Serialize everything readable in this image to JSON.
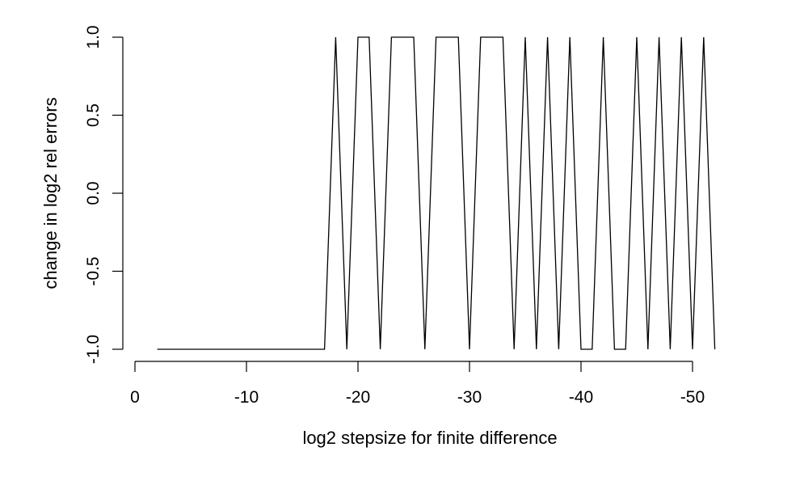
{
  "chart_data": {
    "type": "line",
    "title": "",
    "xlabel": "log2 stepsize for finite difference",
    "ylabel": "change in log2 rel errors",
    "x_axis_reversed": true,
    "xlim": [
      0,
      -51
    ],
    "ylim": [
      -1,
      1
    ],
    "x_ticks": [
      0,
      -10,
      -20,
      -30,
      -40,
      -50
    ],
    "x_tick_labels": [
      "0",
      "-10",
      "-20",
      "-30",
      "-40",
      "-50"
    ],
    "y_ticks": [
      -1.0,
      -0.5,
      0.0,
      0.5,
      1.0
    ],
    "y_tick_labels": [
      "-1.0",
      "-0.5",
      "0.0",
      "0.5",
      "1.0"
    ],
    "grid": false,
    "legend": "none",
    "line_color": "#000000",
    "series": [
      {
        "x": [
          -2,
          -3,
          -4,
          -5,
          -6,
          -7,
          -8,
          -9,
          -10,
          -11,
          -12,
          -13,
          -14,
          -15,
          -16,
          -17,
          -18,
          -19,
          -20,
          -21,
          -22,
          -23,
          -24,
          -25,
          -26,
          -27,
          -28,
          -29,
          -30,
          -31,
          -32,
          -33,
          -34,
          -35,
          -36,
          -37,
          -38,
          -39,
          -40,
          -41,
          -42,
          -43,
          -44,
          -45,
          -46,
          -47,
          -48,
          -49,
          -50,
          -51,
          -52
        ],
        "y": [
          -1,
          -1,
          -1,
          -1,
          -1,
          -1,
          -1,
          -1,
          -1,
          -1,
          -1,
          -1,
          -1,
          -1,
          -1,
          -1,
          1,
          -1,
          1,
          1,
          -1,
          1,
          1,
          1,
          -1,
          1,
          1,
          1,
          -1,
          1,
          1,
          1,
          -1,
          1,
          -1,
          1,
          -1,
          1,
          -1,
          -1,
          1,
          -1,
          -1,
          1,
          -1,
          1,
          -1,
          1,
          -1,
          1,
          -1
        ]
      }
    ]
  }
}
